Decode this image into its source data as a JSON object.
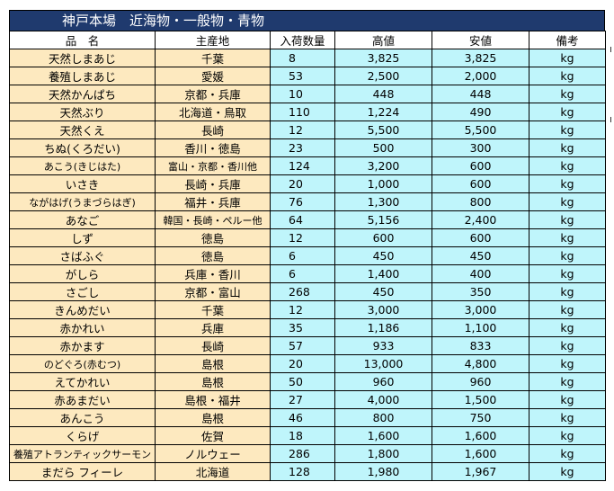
{
  "title": "神戸本場　近海物・一般物・青物",
  "headers": {
    "name": "品　名",
    "origin": "主産地",
    "qty": "入荷数量",
    "high": "高値",
    "low": "安値",
    "note": "備考"
  },
  "rows": [
    {
      "name": "天然しまあじ",
      "origin": "千葉",
      "qty": "8",
      "high": "3,825",
      "low": "3,825",
      "unit": "kg"
    },
    {
      "name": "養殖しまあじ",
      "origin": "愛媛",
      "qty": "53",
      "high": "2,500",
      "low": "2,000",
      "unit": "kg"
    },
    {
      "name": "天然かんぱち",
      "origin": "京都・兵庫",
      "qty": "10",
      "high": "448",
      "low": "448",
      "unit": "kg"
    },
    {
      "name": "天然ぶり",
      "origin": "北海道・鳥取",
      "qty": "110",
      "high": "1,224",
      "low": "490",
      "unit": "kg"
    },
    {
      "name": "天然くえ",
      "origin": "長崎",
      "qty": "12",
      "high": "5,500",
      "low": "5,500",
      "unit": "kg"
    },
    {
      "name": "ちぬ(くろだい)",
      "origin": "香川・徳島",
      "qty": "23",
      "high": "500",
      "low": "300",
      "unit": "kg"
    },
    {
      "name": "あこう(きじはた)",
      "origin": "富山・京都・香川他",
      "qty": "124",
      "high": "3,200",
      "low": "600",
      "unit": "kg"
    },
    {
      "name": "いさき",
      "origin": "長崎・兵庫",
      "qty": "20",
      "high": "1,000",
      "low": "600",
      "unit": "kg"
    },
    {
      "name": "ながはげ(うまづらはぎ)",
      "origin": "福井・兵庫",
      "qty": "76",
      "high": "1,300",
      "low": "800",
      "unit": "kg"
    },
    {
      "name": "あなご",
      "origin": "韓国・長崎・ペルー他",
      "qty": "64",
      "high": "5,156",
      "low": "2,400",
      "unit": "kg"
    },
    {
      "name": "しず",
      "origin": "徳島",
      "qty": "12",
      "high": "600",
      "low": "600",
      "unit": "kg"
    },
    {
      "name": "さばふぐ",
      "origin": "徳島",
      "qty": "6",
      "high": "450",
      "low": "450",
      "unit": "kg"
    },
    {
      "name": "がしら",
      "origin": "兵庫・香川",
      "qty": "6",
      "high": "1,400",
      "low": "400",
      "unit": "kg"
    },
    {
      "name": "さごし",
      "origin": "京都・富山",
      "qty": "268",
      "high": "450",
      "low": "350",
      "unit": "kg"
    },
    {
      "name": "きんめだい",
      "origin": "千葉",
      "qty": "12",
      "high": "3,000",
      "low": "3,000",
      "unit": "kg"
    },
    {
      "name": "赤かれい",
      "origin": "兵庫",
      "qty": "35",
      "high": "1,186",
      "low": "1,100",
      "unit": "kg"
    },
    {
      "name": "赤かます",
      "origin": "長崎",
      "qty": "57",
      "high": "933",
      "low": "833",
      "unit": "kg"
    },
    {
      "name": "のどぐろ(赤むつ)",
      "origin": "島根",
      "qty": "20",
      "high": "13,000",
      "low": "4,800",
      "unit": "kg"
    },
    {
      "name": "えてかれい",
      "origin": "島根",
      "qty": "50",
      "high": "960",
      "low": "960",
      "unit": "kg"
    },
    {
      "name": "赤あまだい",
      "origin": "島根・福井",
      "qty": "27",
      "high": "4,000",
      "low": "1,500",
      "unit": "kg"
    },
    {
      "name": "あんこう",
      "origin": "島根",
      "qty": "46",
      "high": "800",
      "low": "750",
      "unit": "kg"
    },
    {
      "name": "くらげ",
      "origin": "佐賀",
      "qty": "18",
      "high": "1,600",
      "low": "1,600",
      "unit": "kg"
    },
    {
      "name": "養殖アトランティックサーモン",
      "origin": "ノルウェー",
      "qty": "286",
      "high": "1,800",
      "low": "1,600",
      "unit": "kg"
    },
    {
      "name": "まだら フィーレ",
      "origin": "北海道",
      "qty": "128",
      "high": "1,980",
      "low": "1,967",
      "unit": "kg"
    }
  ],
  "colors": {
    "title_bg": "#1f3a6e",
    "name_bg": "#fde9bf",
    "number_bg": "#bff5fb"
  }
}
